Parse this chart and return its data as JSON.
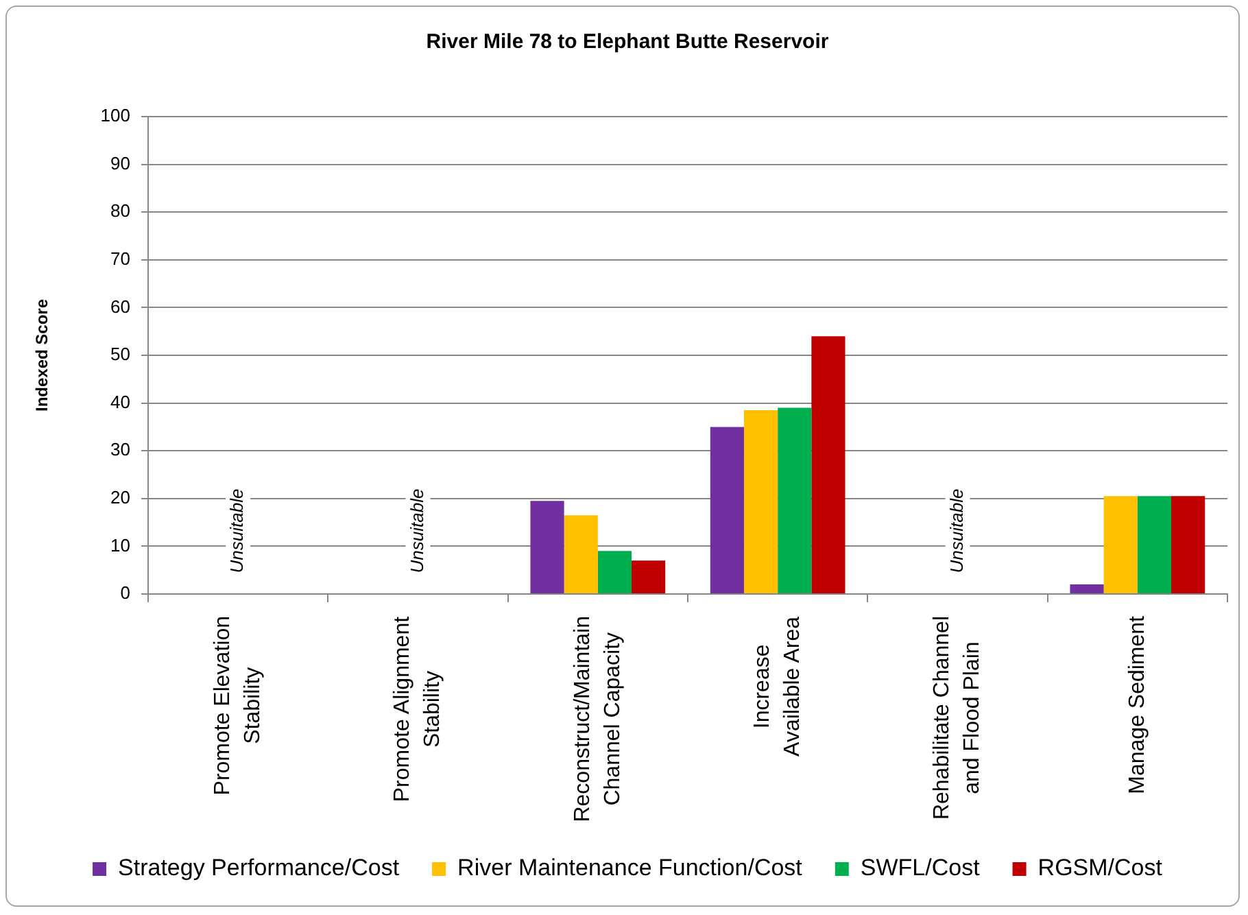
{
  "chart_data": {
    "type": "bar",
    "title": "River Mile 78 to Elephant Butte Reservoir",
    "ylabel": "Indexed Score",
    "categories": [
      "Promote Elevation\nStability",
      "Promote Alignment\nStability",
      "Reconstruct/Maintain\nChannel Capacity",
      "Increase\nAvailable Area",
      "Rehabilitate Channel\nand Flood Plain",
      "Manage Sediment"
    ],
    "series": [
      {
        "name": "Strategy Performance/Cost",
        "color": "#7030a0",
        "values": [
          null,
          null,
          19.5,
          35,
          null,
          2
        ]
      },
      {
        "name": "River Maintenance Function/Cost",
        "color": "#ffc000",
        "values": [
          null,
          null,
          16.5,
          38.5,
          null,
          20.5
        ]
      },
      {
        "name": "SWFL/Cost",
        "color": "#00b050",
        "values": [
          null,
          null,
          9,
          39,
          null,
          20.5
        ]
      },
      {
        "name": "RGSM/Cost",
        "color": "#c00000",
        "values": [
          null,
          null,
          7,
          54,
          null,
          20.5
        ]
      }
    ],
    "ylim": [
      0,
      100
    ],
    "yticks": [
      0,
      10,
      20,
      30,
      40,
      50,
      60,
      70,
      80,
      90,
      100
    ],
    "grid": "y",
    "legend": "bottom",
    "annotations": [
      "Unsuitable",
      "Unsuitable",
      "Unsuitable"
    ]
  }
}
